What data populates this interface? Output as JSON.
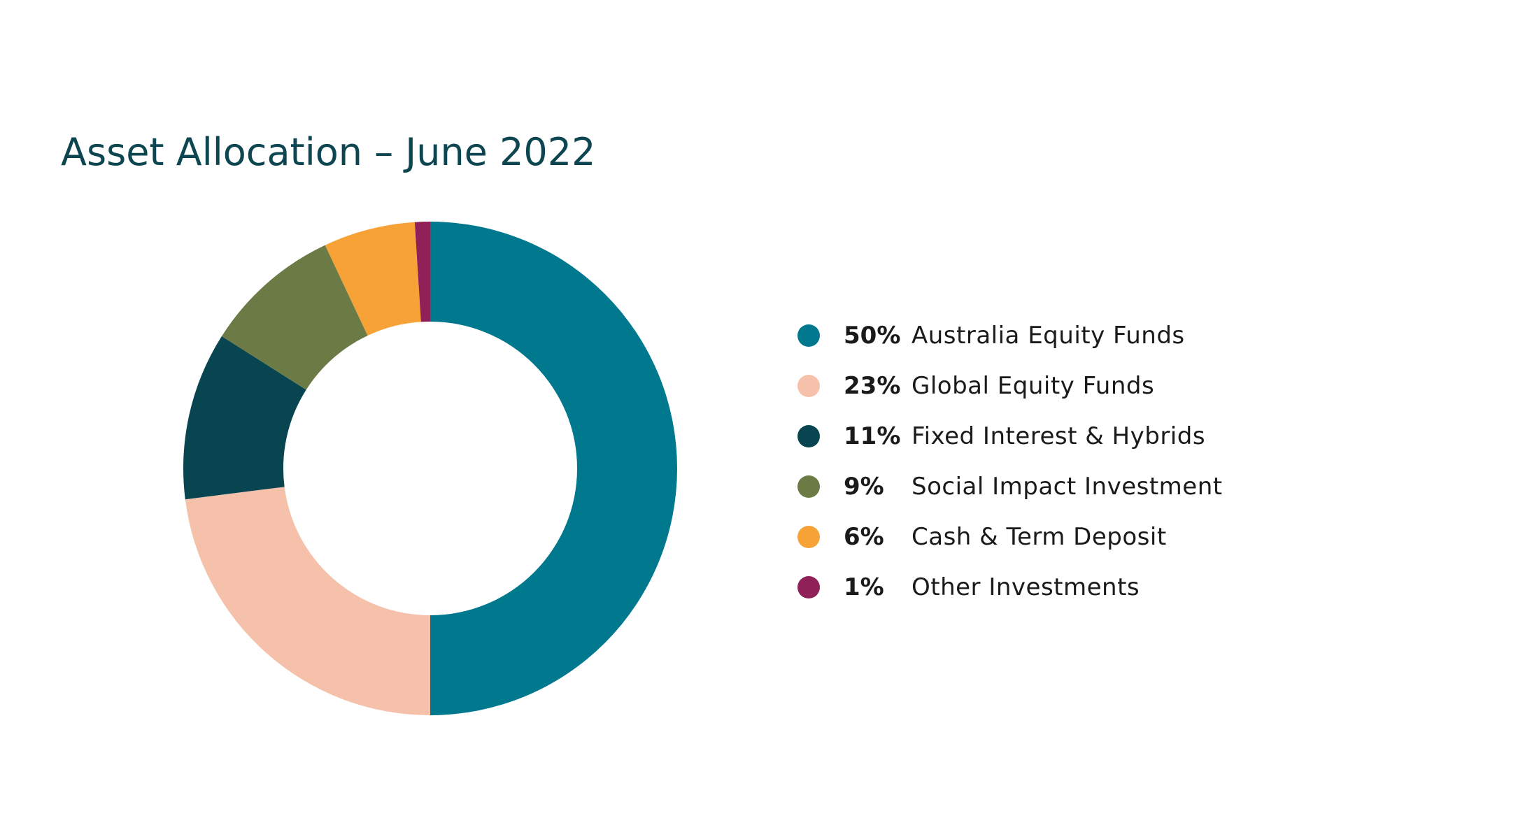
{
  "chart_data": {
    "type": "pie",
    "title": "Asset Allocation – June 2022",
    "donut": true,
    "start": "top",
    "direction": "clockwise",
    "legend_placement": "right",
    "slices": [
      {
        "label": "Australia Equity Funds",
        "value": 50,
        "value_label": "50%",
        "color": "#00788e"
      },
      {
        "label": "Global Equity Funds",
        "value": 23,
        "value_label": "23%",
        "color": "#f6c1aa"
      },
      {
        "label": "Fixed Interest & Hybrids",
        "value": 11,
        "value_label": "11%",
        "color": "#084551"
      },
      {
        "label": "Social Impact Investment",
        "value": 9,
        "value_label": "9%",
        "color": "#6c7a45"
      },
      {
        "label": "Cash & Term Deposit",
        "value": 6,
        "value_label": "6%",
        "color": "#f7a236"
      },
      {
        "label": "Other Investments",
        "value": 1,
        "value_label": "1%",
        "color": "#8f2158"
      }
    ]
  }
}
